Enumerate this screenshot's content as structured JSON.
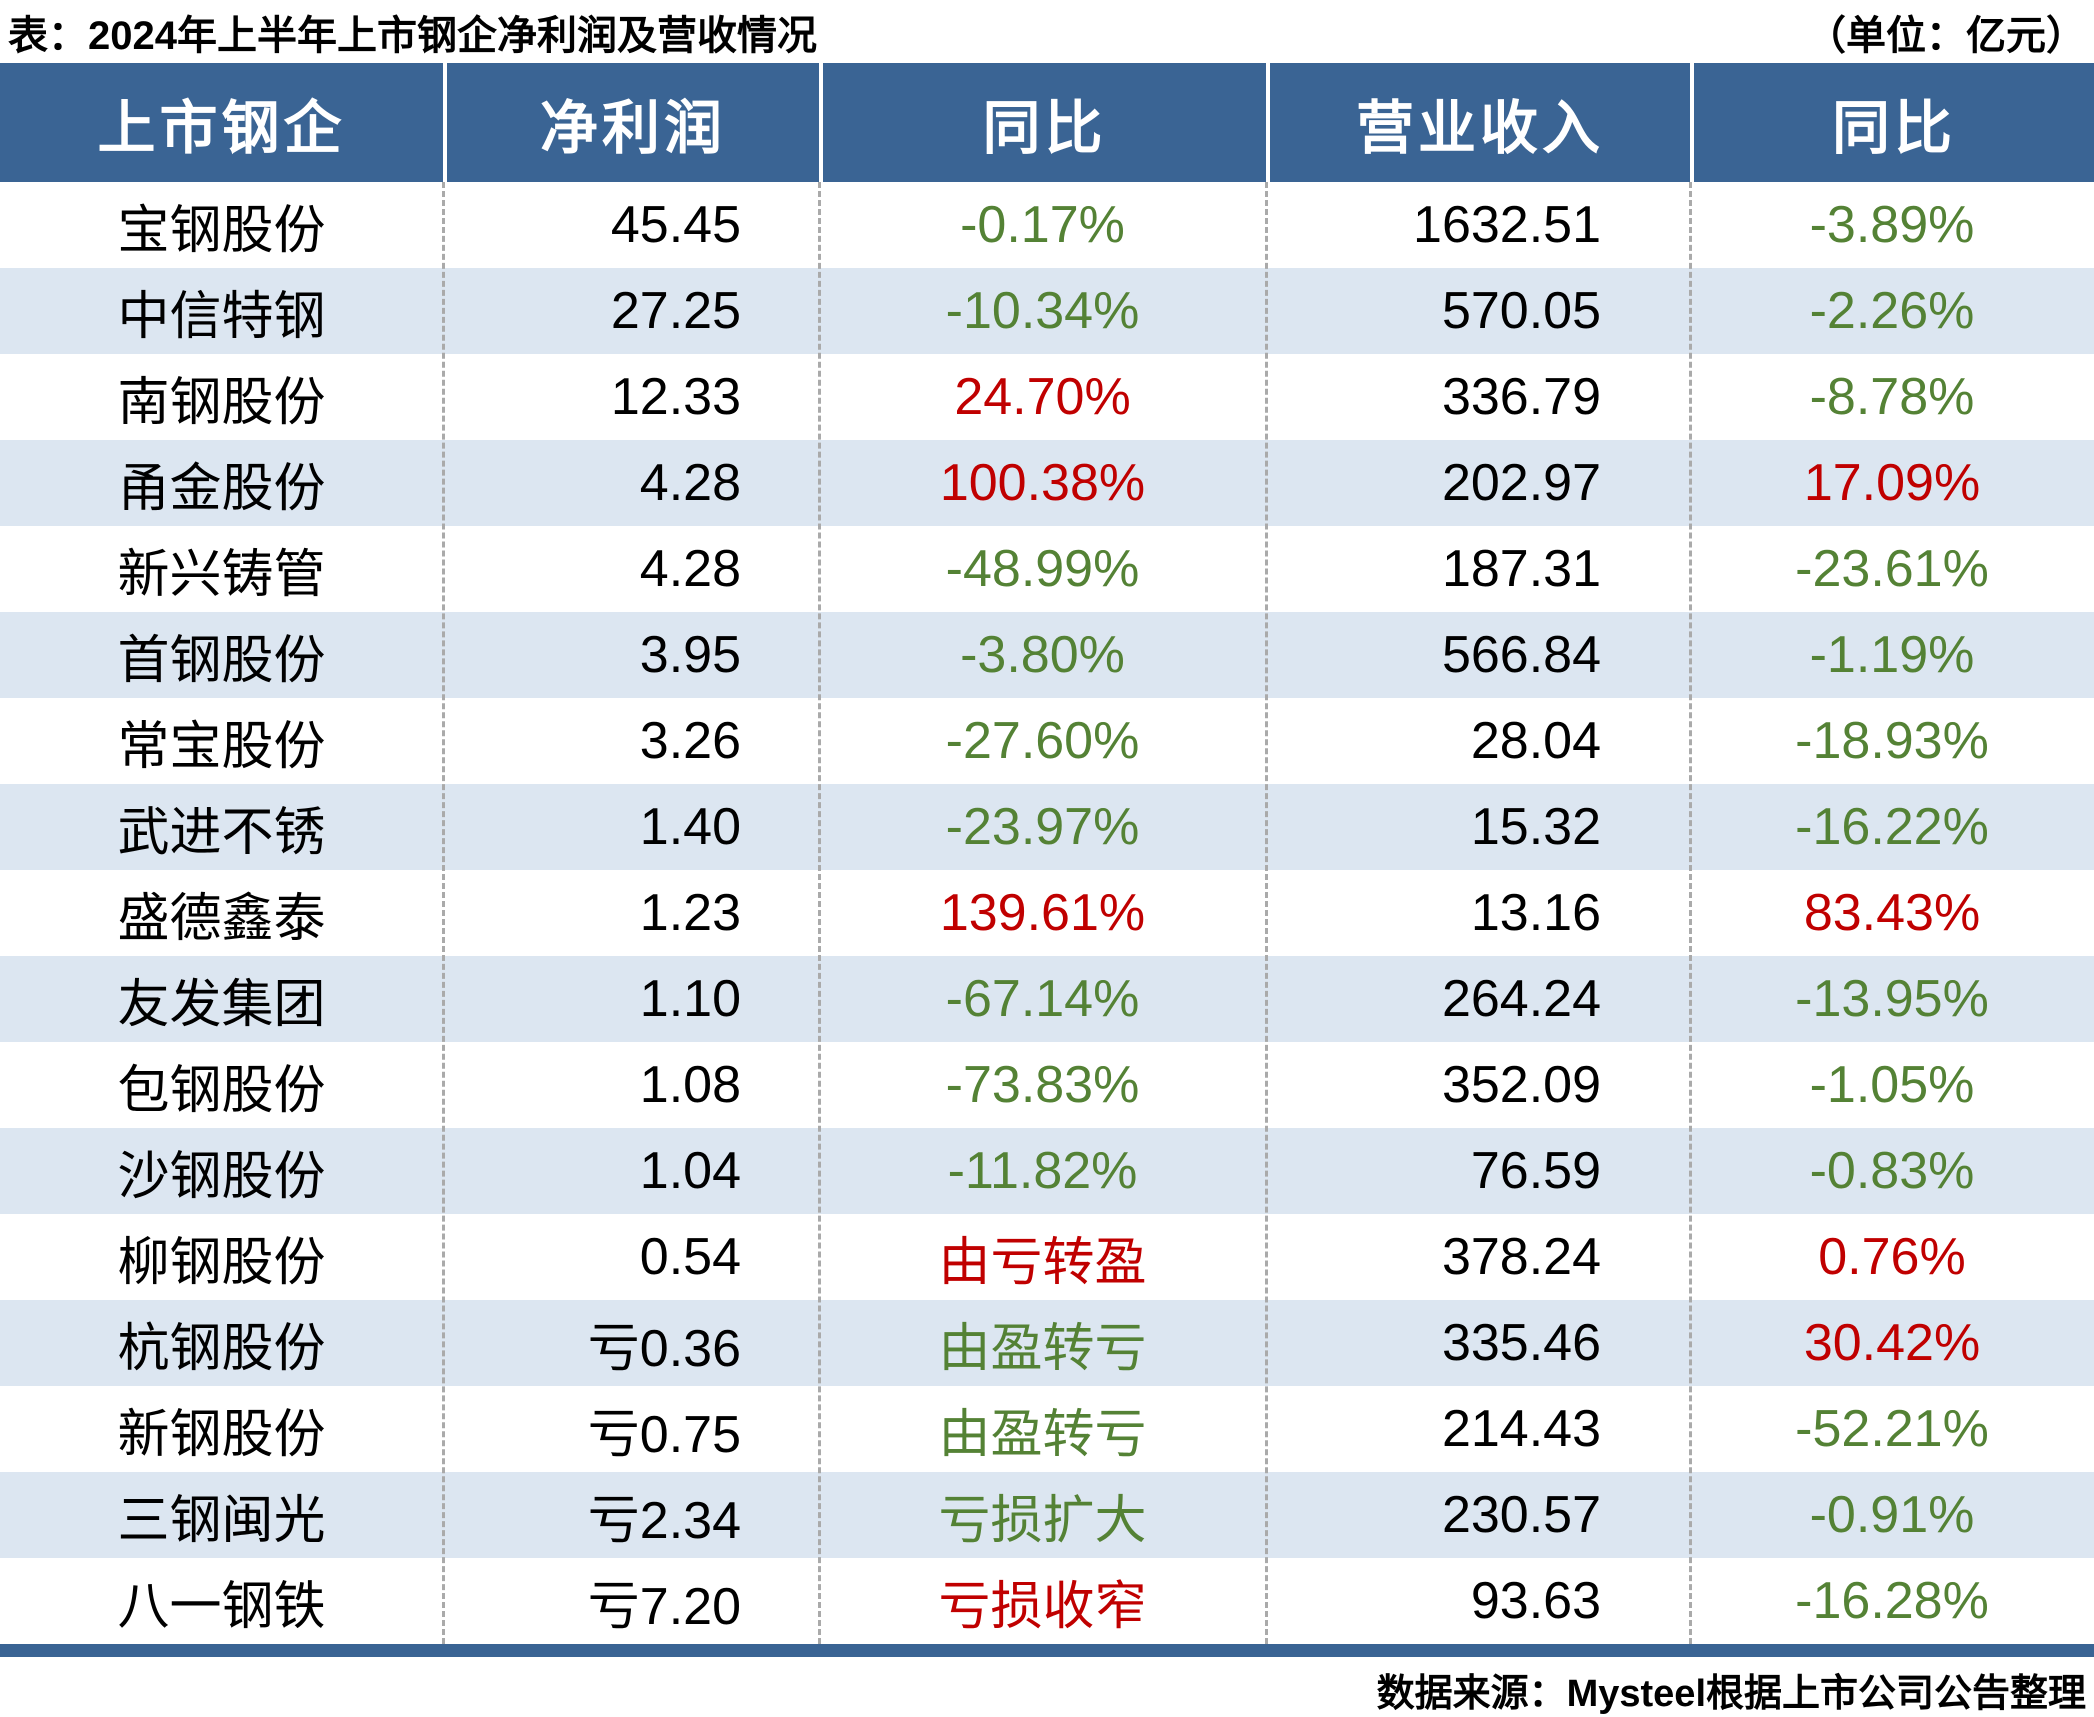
{
  "page": {
    "title": "表：2024年上半年上市钢企净利润及营收情况",
    "unit_note": "（单位：亿元）",
    "source_note": "数据来源：Mysteel根据上市公司公告整理"
  },
  "colors": {
    "header_bg": "#3a6494",
    "row_alt_bg": "#dce6f1",
    "increase_red": "#c00000",
    "decrease_green": "#548235",
    "divider_gray": "#aaaaaa"
  },
  "chart_data": {
    "type": "table",
    "title": "2024年上半年上市钢企净利润及营收情况",
    "unit": "亿元",
    "columns": [
      "上市钢企",
      "净利润",
      "同比",
      "营业收入",
      "同比"
    ],
    "rows": [
      {
        "company": "宝钢股份",
        "net_profit": "45.45",
        "profit_yoy": "-0.17%",
        "profit_yoy_color": "green",
        "revenue": "1632.51",
        "revenue_yoy": "-3.89%",
        "revenue_yoy_color": "green"
      },
      {
        "company": "中信特钢",
        "net_profit": "27.25",
        "profit_yoy": "-10.34%",
        "profit_yoy_color": "green",
        "revenue": "570.05",
        "revenue_yoy": "-2.26%",
        "revenue_yoy_color": "green"
      },
      {
        "company": "南钢股份",
        "net_profit": "12.33",
        "profit_yoy": "24.70%",
        "profit_yoy_color": "red",
        "revenue": "336.79",
        "revenue_yoy": "-8.78%",
        "revenue_yoy_color": "green"
      },
      {
        "company": "甬金股份",
        "net_profit": "4.28",
        "profit_yoy": "100.38%",
        "profit_yoy_color": "red",
        "revenue": "202.97",
        "revenue_yoy": "17.09%",
        "revenue_yoy_color": "red"
      },
      {
        "company": "新兴铸管",
        "net_profit": "4.28",
        "profit_yoy": "-48.99%",
        "profit_yoy_color": "green",
        "revenue": "187.31",
        "revenue_yoy": "-23.61%",
        "revenue_yoy_color": "green"
      },
      {
        "company": "首钢股份",
        "net_profit": "3.95",
        "profit_yoy": "-3.80%",
        "profit_yoy_color": "green",
        "revenue": "566.84",
        "revenue_yoy": "-1.19%",
        "revenue_yoy_color": "green"
      },
      {
        "company": "常宝股份",
        "net_profit": "3.26",
        "profit_yoy": "-27.60%",
        "profit_yoy_color": "green",
        "revenue": "28.04",
        "revenue_yoy": "-18.93%",
        "revenue_yoy_color": "green"
      },
      {
        "company": "武进不锈",
        "net_profit": "1.40",
        "profit_yoy": "-23.97%",
        "profit_yoy_color": "green",
        "revenue": "15.32",
        "revenue_yoy": "-16.22%",
        "revenue_yoy_color": "green"
      },
      {
        "company": "盛德鑫泰",
        "net_profit": "1.23",
        "profit_yoy": "139.61%",
        "profit_yoy_color": "red",
        "revenue": "13.16",
        "revenue_yoy": "83.43%",
        "revenue_yoy_color": "red"
      },
      {
        "company": "友发集团",
        "net_profit": "1.10",
        "profit_yoy": "-67.14%",
        "profit_yoy_color": "green",
        "revenue": "264.24",
        "revenue_yoy": "-13.95%",
        "revenue_yoy_color": "green"
      },
      {
        "company": "包钢股份",
        "net_profit": "1.08",
        "profit_yoy": "-73.83%",
        "profit_yoy_color": "green",
        "revenue": "352.09",
        "revenue_yoy": "-1.05%",
        "revenue_yoy_color": "green"
      },
      {
        "company": "沙钢股份",
        "net_profit": "1.04",
        "profit_yoy": "-11.82%",
        "profit_yoy_color": "green",
        "revenue": "76.59",
        "revenue_yoy": "-0.83%",
        "revenue_yoy_color": "green"
      },
      {
        "company": "柳钢股份",
        "net_profit": "0.54",
        "profit_yoy": "由亏转盈",
        "profit_yoy_color": "red",
        "revenue": "378.24",
        "revenue_yoy": "0.76%",
        "revenue_yoy_color": "red"
      },
      {
        "company": "杭钢股份",
        "net_profit": "亏0.36",
        "profit_yoy": "由盈转亏",
        "profit_yoy_color": "green",
        "revenue": "335.46",
        "revenue_yoy": "30.42%",
        "revenue_yoy_color": "red"
      },
      {
        "company": "新钢股份",
        "net_profit": "亏0.75",
        "profit_yoy": "由盈转亏",
        "profit_yoy_color": "green",
        "revenue": "214.43",
        "revenue_yoy": "-52.21%",
        "revenue_yoy_color": "green"
      },
      {
        "company": "三钢闽光",
        "net_profit": "亏2.34",
        "profit_yoy": "亏损扩大",
        "profit_yoy_color": "green",
        "revenue": "230.57",
        "revenue_yoy": "-0.91%",
        "revenue_yoy_color": "green"
      },
      {
        "company": "八一钢铁",
        "net_profit": "亏7.20",
        "profit_yoy": "亏损收窄",
        "profit_yoy_color": "red",
        "revenue": "93.63",
        "revenue_yoy": "-16.28%",
        "revenue_yoy_color": "green"
      }
    ]
  }
}
